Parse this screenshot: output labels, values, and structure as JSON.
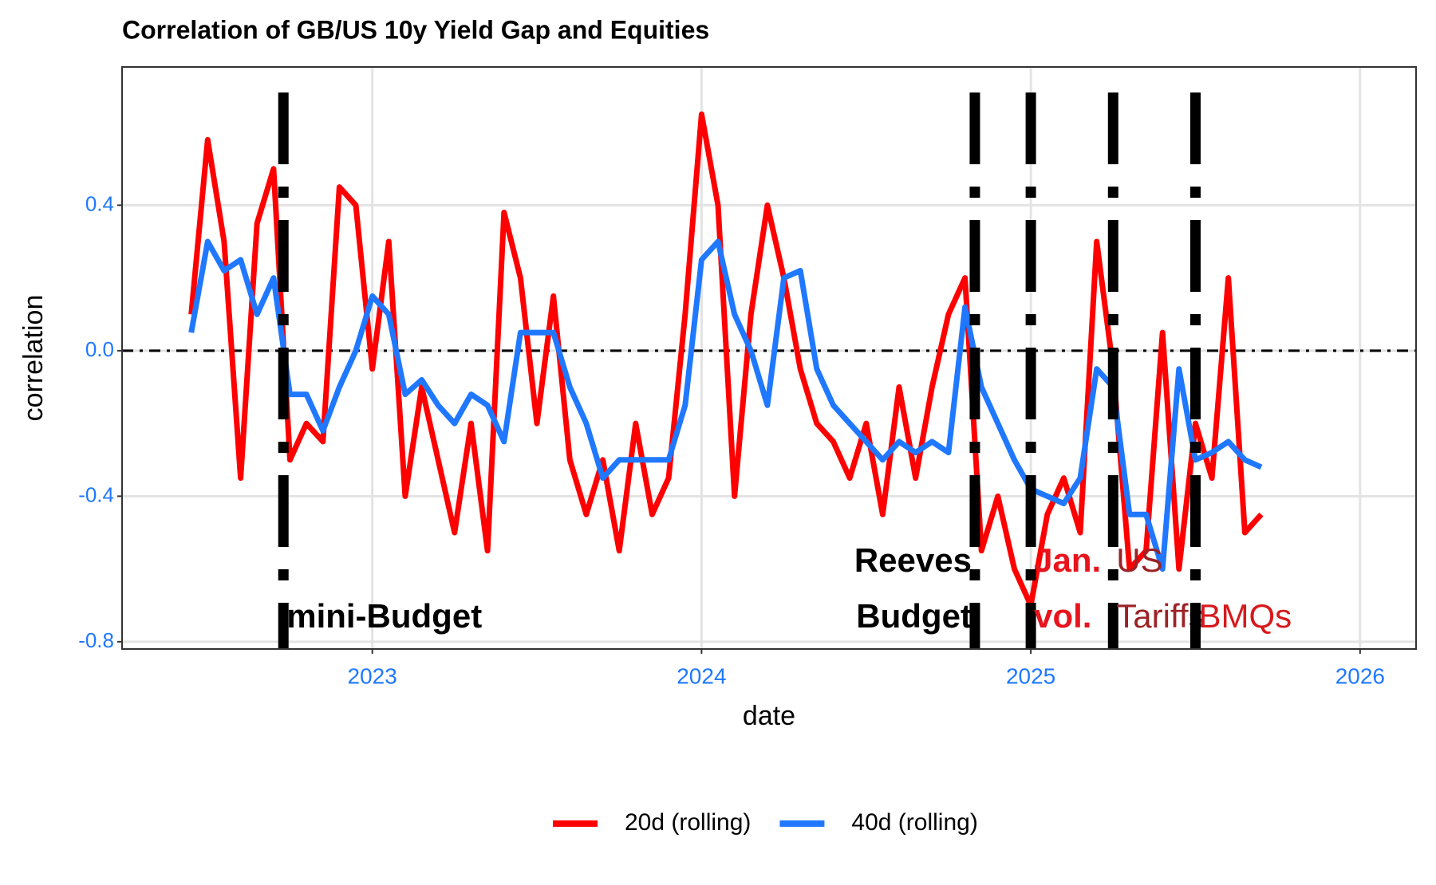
{
  "chart_data": {
    "type": "line",
    "title": "Correlation of GB/US 10y Yield Gap and Equities",
    "x_label": "date",
    "y_label": "correlation",
    "x": [
      2022.45,
      2022.5,
      2022.55,
      2022.6,
      2022.65,
      2022.7,
      2022.75,
      2022.8,
      2022.85,
      2022.9,
      2022.95,
      2023.0,
      2023.05,
      2023.1,
      2023.15,
      2023.2,
      2023.25,
      2023.3,
      2023.35,
      2023.4,
      2023.45,
      2023.5,
      2023.55,
      2023.6,
      2023.65,
      2023.7,
      2023.75,
      2023.8,
      2023.85,
      2023.9,
      2023.95,
      2024.0,
      2024.05,
      2024.1,
      2024.15,
      2024.2,
      2024.25,
      2024.3,
      2024.35,
      2024.4,
      2024.45,
      2024.5,
      2024.55,
      2024.6,
      2024.65,
      2024.7,
      2024.75,
      2024.8,
      2024.85,
      2024.9,
      2024.95,
      2025.0,
      2025.05,
      2025.1,
      2025.15,
      2025.2,
      2025.25,
      2025.3,
      2025.35,
      2025.4,
      2025.45,
      2025.5,
      2025.55,
      2025.6,
      2025.65,
      2025.7
    ],
    "series": [
      {
        "name": "20d (rolling)",
        "color": "#ff0000",
        "values": [
          0.1,
          0.58,
          0.3,
          -0.35,
          0.35,
          0.5,
          -0.3,
          -0.2,
          -0.25,
          0.45,
          0.4,
          -0.05,
          0.3,
          -0.4,
          -0.1,
          -0.3,
          -0.5,
          -0.2,
          -0.55,
          0.38,
          0.2,
          -0.2,
          0.15,
          -0.3,
          -0.45,
          -0.3,
          -0.55,
          -0.2,
          -0.45,
          -0.35,
          0.1,
          0.65,
          0.4,
          -0.4,
          0.1,
          0.4,
          0.2,
          -0.05,
          -0.2,
          -0.25,
          -0.35,
          -0.2,
          -0.45,
          -0.1,
          -0.35,
          -0.1,
          0.1,
          0.2,
          -0.55,
          -0.4,
          -0.6,
          -0.7,
          -0.45,
          -0.35,
          -0.5,
          0.3,
          -0.05,
          -0.6,
          -0.55,
          0.05,
          -0.6,
          -0.2,
          -0.35,
          0.2,
          -0.5,
          -0.45
        ]
      },
      {
        "name": "40d (rolling)",
        "color": "#1f78ff",
        "values": [
          0.05,
          0.3,
          0.22,
          0.25,
          0.1,
          0.2,
          -0.12,
          -0.12,
          -0.22,
          -0.1,
          0.0,
          0.15,
          0.1,
          -0.12,
          -0.08,
          -0.15,
          -0.2,
          -0.12,
          -0.15,
          -0.25,
          0.05,
          0.05,
          0.05,
          -0.1,
          -0.2,
          -0.35,
          -0.3,
          -0.3,
          -0.3,
          -0.3,
          -0.15,
          0.25,
          0.3,
          0.1,
          0.0,
          -0.15,
          0.2,
          0.22,
          -0.05,
          -0.15,
          -0.2,
          -0.25,
          -0.3,
          -0.25,
          -0.28,
          -0.25,
          -0.28,
          0.12,
          -0.1,
          -0.2,
          -0.3,
          -0.38,
          -0.4,
          -0.42,
          -0.35,
          -0.05,
          -0.1,
          -0.45,
          -0.45,
          -0.6,
          -0.05,
          -0.3,
          -0.28,
          -0.25,
          -0.3,
          -0.32
        ]
      }
    ],
    "xlim": [
      2022.24,
      2026.17
    ],
    "xticks": [
      2023,
      2024,
      2025,
      2026
    ],
    "ylim": [
      -0.82,
      0.78
    ],
    "yticks": [
      0.4,
      {
        "value": 0,
        "label": "0.0"
      },
      -0.4,
      -0.8
    ],
    "hline": 0,
    "grid": true,
    "tick_color": "#1f78ff",
    "legend_position": "bottom",
    "events": [
      {
        "x": 2022.73,
        "lines": [
          "mini-Budget"
        ],
        "color": "#000000",
        "bold": true,
        "align": "left"
      },
      {
        "x": 2024.83,
        "lines": [
          "Reeves",
          "Budget"
        ],
        "color": "#000000",
        "bold": true,
        "align": "right"
      },
      {
        "x": 2025.0,
        "lines": [
          "Jan.",
          "vol."
        ],
        "color": "#e8141c",
        "bold": true,
        "align": "left"
      },
      {
        "x": 2025.25,
        "lines": [
          "US",
          "Tariffs"
        ],
        "color": "#9b2226",
        "bold": false,
        "align": "left"
      },
      {
        "x": 2025.5,
        "lines": [
          "BMQs"
        ],
        "color": "#d7191c",
        "bold": false,
        "align": "left"
      }
    ]
  }
}
